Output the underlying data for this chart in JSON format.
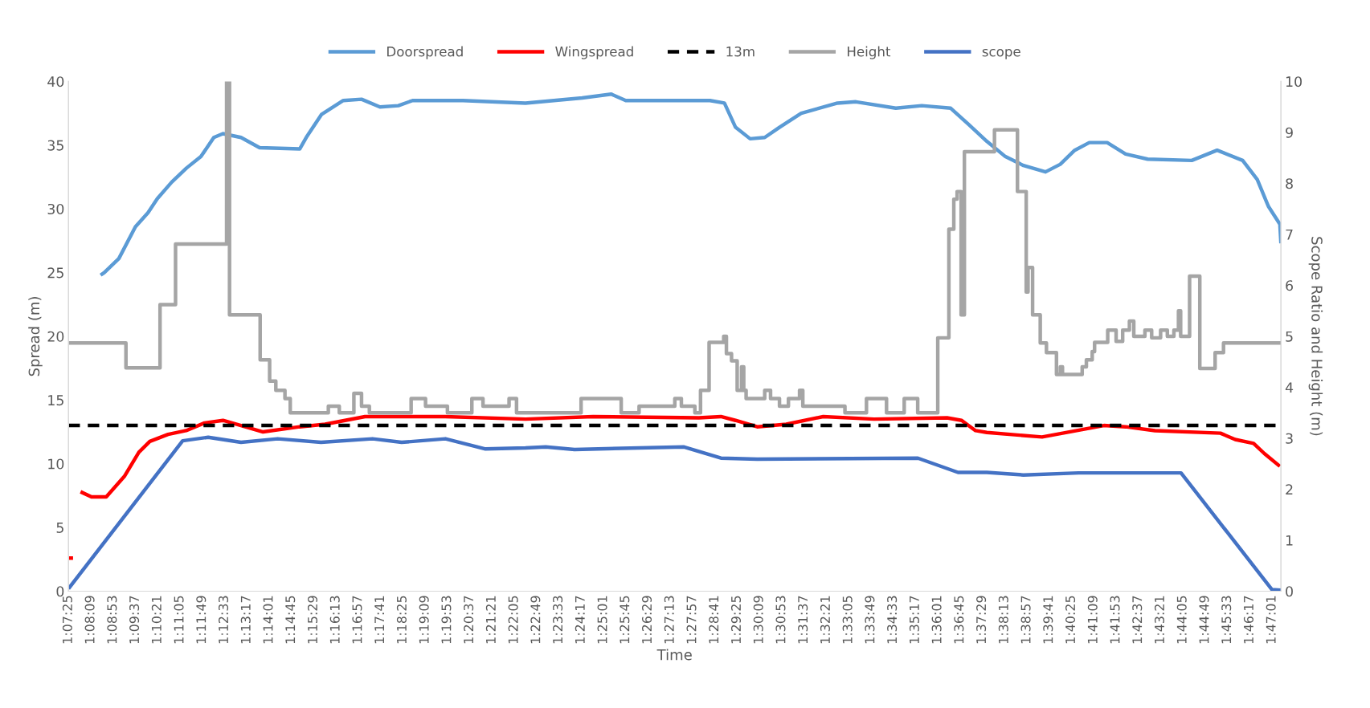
{
  "chart_data": {
    "type": "line",
    "xlabel": "Time",
    "ylabel": "Spread (m)",
    "y2label": "Scope Ratio and Height (m)",
    "xlim": [
      1.1236,
      1.7885
    ],
    "xticks": [
      {
        "value": 1.12361,
        "label": "1:07:25"
      },
      {
        "value": 1.13583,
        "label": "1:08:09"
      },
      {
        "value": 1.14806,
        "label": "1:08:53"
      },
      {
        "value": 1.16028,
        "label": "1:09:37"
      },
      {
        "value": 1.1725,
        "label": "1:10:21"
      },
      {
        "value": 1.18472,
        "label": "1:11:05"
      },
      {
        "value": 1.19694,
        "label": "1:11:49"
      },
      {
        "value": 1.20917,
        "label": "1:12:33"
      },
      {
        "value": 1.22139,
        "label": "1:13:17"
      },
      {
        "value": 1.23361,
        "label": "1:14:01"
      },
      {
        "value": 1.24583,
        "label": "1:14:45"
      },
      {
        "value": 1.25806,
        "label": "1:15:29"
      },
      {
        "value": 1.27028,
        "label": "1:16:13"
      },
      {
        "value": 1.2825,
        "label": "1:16:57"
      },
      {
        "value": 1.29472,
        "label": "1:17:41"
      },
      {
        "value": 1.30694,
        "label": "1:18:25"
      },
      {
        "value": 1.31917,
        "label": "1:19:09"
      },
      {
        "value": 1.33139,
        "label": "1:19:53"
      },
      {
        "value": 1.34361,
        "label": "1:20:37"
      },
      {
        "value": 1.35583,
        "label": "1:21:21"
      },
      {
        "value": 1.36806,
        "label": "1:22:05"
      },
      {
        "value": 1.38028,
        "label": "1:22:49"
      },
      {
        "value": 1.3925,
        "label": "1:23:33"
      },
      {
        "value": 1.40472,
        "label": "1:24:17"
      },
      {
        "value": 1.41694,
        "label": "1:25:01"
      },
      {
        "value": 1.42917,
        "label": "1:25:45"
      },
      {
        "value": 1.44139,
        "label": "1:26:29"
      },
      {
        "value": 1.45361,
        "label": "1:27:13"
      },
      {
        "value": 1.46583,
        "label": "1:27:57"
      },
      {
        "value": 1.47806,
        "label": "1:28:41"
      },
      {
        "value": 1.49028,
        "label": "1:29:25"
      },
      {
        "value": 1.5025,
        "label": "1:30:09"
      },
      {
        "value": 1.51472,
        "label": "1:30:53"
      },
      {
        "value": 1.52694,
        "label": "1:31:37"
      },
      {
        "value": 1.53917,
        "label": "1:32:21"
      },
      {
        "value": 1.55139,
        "label": "1:33:05"
      },
      {
        "value": 1.56361,
        "label": "1:33:49"
      },
      {
        "value": 1.57583,
        "label": "1:34:33"
      },
      {
        "value": 1.58806,
        "label": "1:35:17"
      },
      {
        "value": 1.60028,
        "label": "1:36:01"
      },
      {
        "value": 1.6125,
        "label": "1:36:45"
      },
      {
        "value": 1.62472,
        "label": "1:37:29"
      },
      {
        "value": 1.63694,
        "label": "1:38:13"
      },
      {
        "value": 1.64917,
        "label": "1:38:57"
      },
      {
        "value": 1.66139,
        "label": "1:39:41"
      },
      {
        "value": 1.67361,
        "label": "1:40:25"
      },
      {
        "value": 1.68583,
        "label": "1:41:09"
      },
      {
        "value": 1.69806,
        "label": "1:41:53"
      },
      {
        "value": 1.71028,
        "label": "1:42:37"
      },
      {
        "value": 1.7225,
        "label": "1:43:21"
      },
      {
        "value": 1.73472,
        "label": "1:44:05"
      },
      {
        "value": 1.74694,
        "label": "1:44:49"
      },
      {
        "value": 1.75917,
        "label": "1:45:33"
      },
      {
        "value": 1.77139,
        "label": "1:46:17"
      },
      {
        "value": 1.78361,
        "label": "1:47:01"
      }
    ],
    "ylim": [
      0,
      40
    ],
    "yticks": [
      0,
      5,
      10,
      15,
      20,
      25,
      30,
      35,
      40
    ],
    "y2lim": [
      0,
      10
    ],
    "y2ticks": [
      0,
      1,
      2,
      3,
      4,
      5,
      6,
      7,
      8,
      9,
      10
    ],
    "legend": "top",
    "grid": false,
    "series": [
      {
        "name": "Doorspread",
        "color": "#5b9bd5",
        "x": [
          1.1412,
          1.1432,
          1.1512,
          1.1603,
          1.1672,
          1.1723,
          1.1802,
          1.1883,
          1.1962,
          1.2033,
          1.2083,
          1.2182,
          1.2284,
          1.2504,
          1.2544,
          1.2623,
          1.2743,
          1.2843,
          1.2944,
          1.3045,
          1.3123,
          1.3399,
          1.3742,
          1.4053,
          1.4213,
          1.4292,
          1.4754,
          1.4833,
          1.4894,
          1.4974,
          1.5054,
          1.5135,
          1.5254,
          1.5453,
          1.5554,
          1.5773,
          1.5915,
          1.6074,
          1.6174,
          1.6272,
          1.6374,
          1.6473,
          1.6594,
          1.6675,
          1.6754,
          1.6834,
          1.6932,
          1.7033,
          1.7154,
          1.7396,
          1.7535,
          1.7675,
          1.7755,
          1.7816,
          1.7879,
          1.7885
        ],
        "values": [
          24.8,
          25.0,
          26.1,
          28.6,
          29.7,
          30.8,
          32.1,
          33.2,
          34.1,
          35.6,
          35.9,
          35.6,
          34.8,
          34.7,
          35.7,
          37.4,
          38.5,
          38.6,
          38.0,
          38.1,
          38.5,
          38.5,
          38.3,
          38.7,
          39.0,
          38.5,
          38.5,
          38.3,
          36.4,
          35.5,
          35.6,
          36.4,
          37.5,
          38.3,
          38.4,
          37.9,
          38.1,
          37.9,
          36.6,
          35.3,
          34.1,
          33.4,
          32.9,
          33.5,
          34.6,
          35.2,
          35.2,
          34.3,
          33.9,
          33.8,
          34.6,
          33.8,
          32.3,
          30.2,
          28.8,
          27.3
        ]
      },
      {
        "name": "Wingspread",
        "color": "#ff0000",
        "x": [
          1.1236,
          1.1261,
          1.1282,
          1.1302,
          1.1362,
          1.1443,
          1.1542,
          1.1622,
          1.1682,
          1.1782,
          1.1881,
          1.1982,
          1.2083,
          1.2182,
          1.2303,
          1.2504,
          1.2643,
          1.2862,
          1.3302,
          1.3742,
          1.4113,
          1.4693,
          1.4814,
          1.4894,
          1.5013,
          1.5172,
          1.5375,
          1.5654,
          1.6054,
          1.6134,
          1.621,
          1.6272,
          1.6575,
          1.6914,
          1.7033,
          1.7194,
          1.7553,
          1.7634,
          1.7735,
          1.7794,
          1.7879
        ],
        "values": [
          2.6,
          2.6,
          null,
          7.8,
          7.4,
          7.4,
          9.0,
          10.9,
          11.75,
          12.3,
          12.6,
          13.2,
          13.4,
          13.0,
          12.5,
          12.9,
          13.1,
          13.7,
          13.7,
          13.5,
          13.7,
          13.6,
          13.7,
          13.4,
          12.9,
          13.1,
          13.7,
          13.5,
          13.6,
          13.4,
          12.6,
          12.45,
          12.1,
          13.0,
          12.9,
          12.6,
          12.4,
          11.9,
          11.6,
          10.8,
          9.8
        ]
      },
      {
        "name": "13m",
        "color": "#000000",
        "line_style": "dashed",
        "x": [
          1.1236,
          1.7885
        ],
        "values": [
          13,
          13
        ]
      },
      {
        "name": "Height",
        "color": "#a5a5a5",
        "type": "step",
        "axis": "y2",
        "x": [
          1.1236,
          1.1551,
          1.1738,
          1.1823,
          1.2103,
          1.2119,
          1.2287,
          1.2339,
          1.2373,
          1.2423,
          1.2452,
          1.2661,
          1.2721,
          1.2801,
          1.2843,
          1.2886,
          1.3115,
          1.3194,
          1.3314,
          1.3448,
          1.3509,
          1.3652,
          1.3693,
          1.4047,
          1.4267,
          1.4365,
          1.4561,
          1.4597,
          1.4671,
          1.4702,
          1.4749,
          1.4829,
          1.4844,
          1.4872,
          1.4903,
          1.4927,
          1.4939,
          1.4952,
          1.5054,
          1.5086,
          1.5135,
          1.5184,
          1.5245,
          1.5263,
          1.5494,
          1.5612,
          1.5722,
          1.5819,
          1.5893,
          1.6003,
          1.6064,
          1.6091,
          1.6109,
          1.6131,
          1.6149,
          1.6314,
          1.644,
          1.6488,
          1.6498,
          1.6523,
          1.6565,
          1.6599,
          1.6654,
          1.6675,
          1.6687,
          1.6795,
          1.6818,
          1.685,
          1.6863,
          1.6935,
          1.6981,
          1.7017,
          1.7054,
          1.7078,
          1.7139,
          1.7176,
          1.7225,
          1.7262,
          1.7298,
          1.7323,
          1.7335,
          1.7384,
          1.744,
          1.7524,
          1.757,
          1.7885
        ],
        "values": [
          4.87,
          4.38,
          5.62,
          6.81,
          10,
          5.42,
          4.54,
          4.12,
          3.94,
          3.78,
          3.5,
          3.63,
          3.5,
          3.88,
          3.63,
          3.5,
          3.78,
          3.63,
          3.5,
          3.78,
          3.63,
          3.78,
          3.5,
          3.78,
          3.5,
          3.63,
          3.78,
          3.63,
          3.5,
          3.94,
          4.88,
          5.0,
          4.66,
          4.52,
          3.94,
          4.4,
          3.94,
          3.78,
          3.94,
          3.78,
          3.63,
          3.78,
          3.94,
          3.63,
          3.5,
          3.78,
          3.5,
          3.78,
          3.5,
          4.97,
          7.1,
          7.69,
          7.84,
          5.42,
          8.62,
          9.05,
          7.84,
          5.87,
          6.35,
          5.42,
          4.87,
          4.68,
          4.25,
          4.4,
          4.25,
          4.4,
          4.54,
          4.7,
          4.88,
          5.12,
          4.9,
          5.12,
          5.3,
          5.0,
          5.12,
          4.97,
          5.12,
          5.0,
          5.12,
          5.5,
          5.0,
          6.18,
          4.37,
          4.68,
          4.87,
          4.87
        ]
      },
      {
        "name": "scope",
        "color": "#4472c4",
        "axis": "y2",
        "x": [
          1.1236,
          1.1862,
          1.2002,
          1.2182,
          1.2383,
          1.2621,
          1.2903,
          1.3063,
          1.3303,
          1.3523,
          1.3742,
          1.3853,
          1.4011,
          1.4612,
          1.4814,
          1.5013,
          1.5894,
          1.6114,
          1.6272,
          1.6473,
          1.6776,
          1.7337,
          1.7836,
          1.7885
        ],
        "values": [
          0.05,
          2.95,
          3.02,
          2.92,
          2.99,
          2.92,
          2.99,
          2.92,
          2.99,
          2.79,
          2.81,
          2.83,
          2.78,
          2.83,
          2.61,
          2.59,
          2.61,
          2.33,
          2.33,
          2.28,
          2.32,
          2.32,
          0.03,
          0.02
        ]
      }
    ]
  }
}
